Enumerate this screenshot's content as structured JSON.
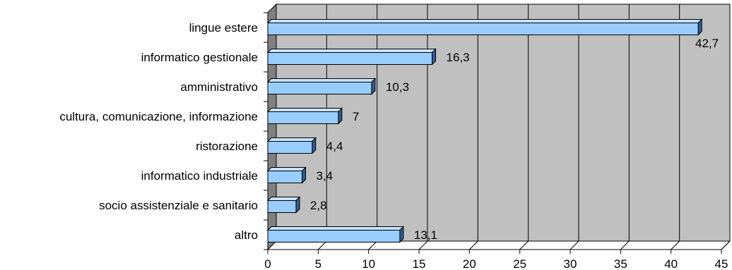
{
  "chart_data": {
    "type": "bar",
    "orientation": "horizontal",
    "three_d": true,
    "categories": [
      "lingue estere",
      "informatico gestionale",
      "amministrativo",
      "cultura, comunicazione, informazione",
      "ristorazione",
      "informatico industriale",
      "socio assistenziale e sanitario",
      "altro"
    ],
    "values": [
      42.7,
      16.3,
      10.3,
      7,
      4.4,
      3.4,
      2.8,
      13.1
    ],
    "data_labels": [
      "42,7",
      "16,3",
      "10,3",
      "7",
      "4,4",
      "3,4",
      "2,8",
      "13,1"
    ],
    "x_ticks": [
      "0",
      "5",
      "10",
      "15",
      "20",
      "25",
      "30",
      "35",
      "40",
      "45"
    ],
    "xlim": [
      0,
      45
    ],
    "title": "",
    "xlabel": "",
    "ylabel": "",
    "grid": "vertical",
    "legend": "none",
    "colors": {
      "bar_front": "#99ccff",
      "bar_top": "#c8e4ff",
      "bar_side": "#2f5d94",
      "bar_outline": "#000000",
      "plot_back_wall": "#c0c0c0",
      "plot_side_wall": "#808080",
      "gridline": "#000000"
    }
  }
}
